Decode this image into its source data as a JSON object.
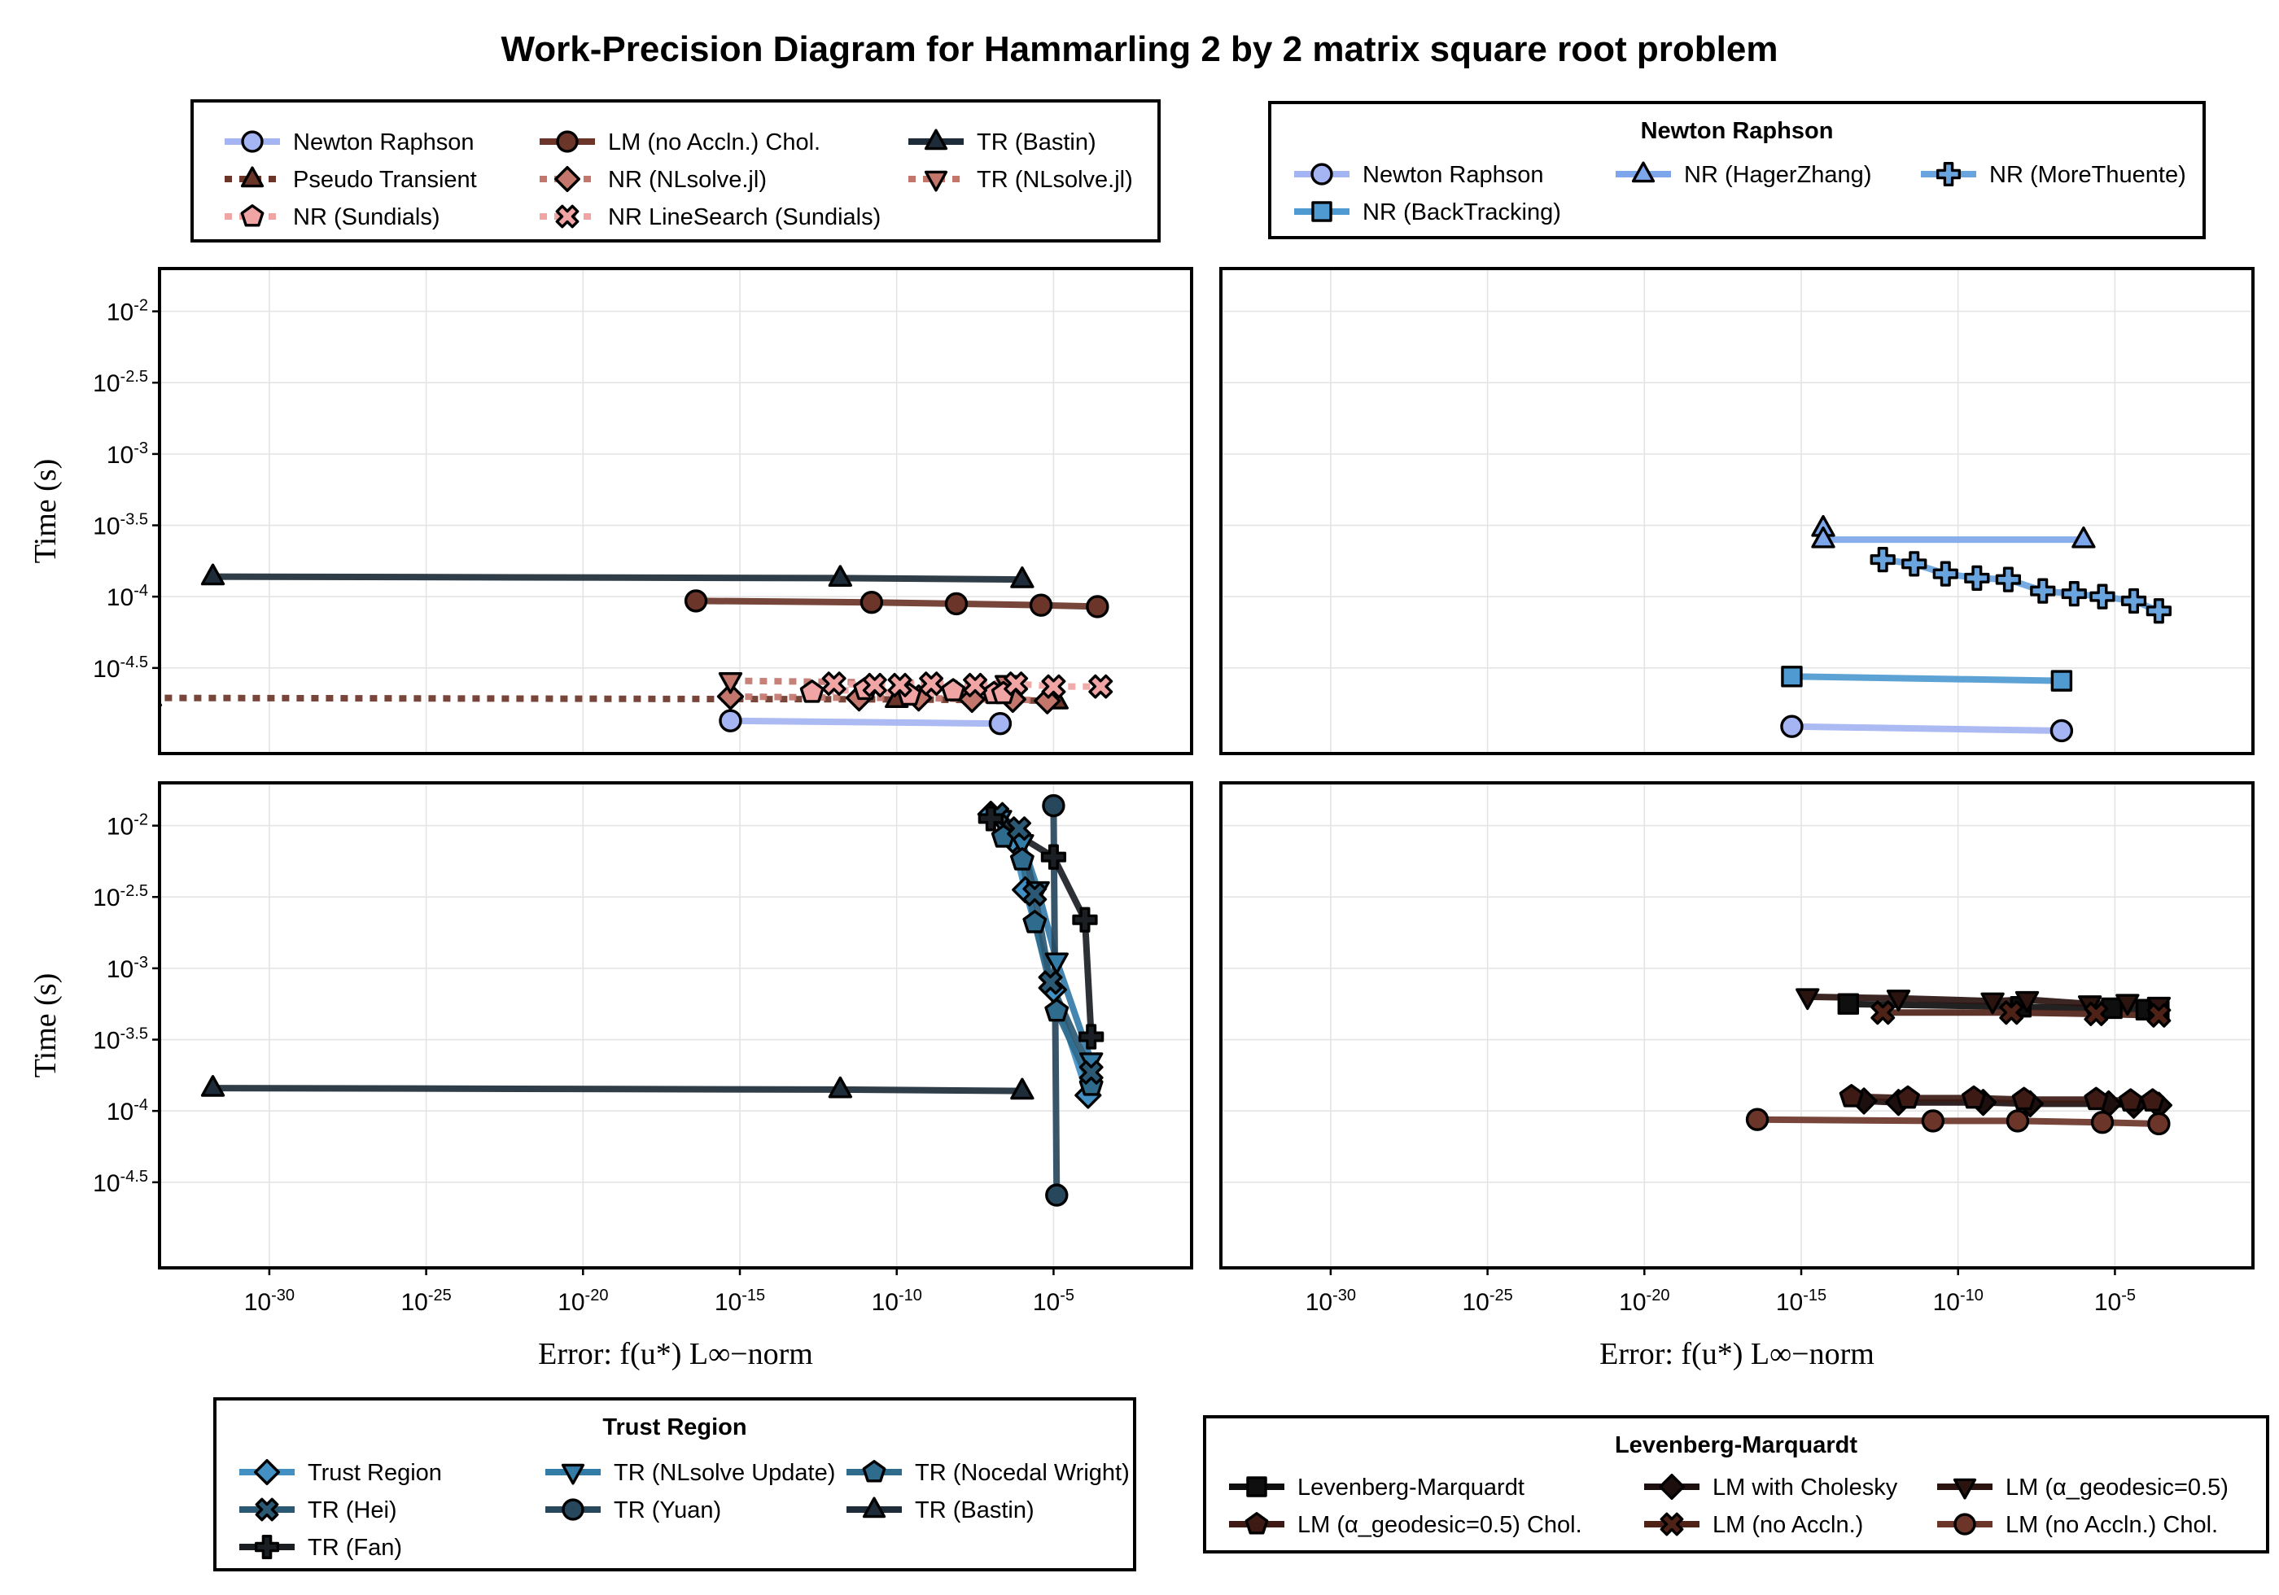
{
  "title": "Work-Precision Diagram for Hammarling 2 by 2 matrix square root problem",
  "axes": {
    "xlabel": "Error: f(u*) L∞−norm",
    "ylabel": "Time (s)",
    "x_scale": "log10",
    "y_scale": "log10",
    "x_ticks": [
      {
        "base": "10",
        "exp": "-30",
        "value": -30
      },
      {
        "base": "10",
        "exp": "-25",
        "value": -25
      },
      {
        "base": "10",
        "exp": "-20",
        "value": -20
      },
      {
        "base": "10",
        "exp": "-15",
        "value": -15
      },
      {
        "base": "10",
        "exp": "-10",
        "value": -10
      },
      {
        "base": "10",
        "exp": "-5",
        "value": -5
      }
    ],
    "y_ticks": [
      {
        "base": "10",
        "exp": "-2",
        "value": -2
      },
      {
        "base": "10",
        "exp": "-2.5",
        "value": -2.5
      },
      {
        "base": "10",
        "exp": "-3",
        "value": -3
      },
      {
        "base": "10",
        "exp": "-3.5",
        "value": -3.5
      },
      {
        "base": "10",
        "exp": "-4",
        "value": -4
      },
      {
        "base": "10",
        "exp": "-4.5",
        "value": -4.5
      }
    ],
    "xlim_log10": [
      -33.5,
      -0.6
    ],
    "ylim_log10": [
      -5.1,
      -1.7
    ],
    "grid": true
  },
  "legends": [
    {
      "id": "general",
      "title": "",
      "columns": 3,
      "entries": [
        {
          "label": "Newton Raphson",
          "color": "#a5b4f2",
          "marker": "circle",
          "dash": "solid"
        },
        {
          "label": "LM (no Accln.) Chol.",
          "color": "#6b3529",
          "marker": "circle",
          "dash": "solid"
        },
        {
          "label": "TR (Bastin)",
          "color": "#1d2c38",
          "marker": "triangle",
          "dash": "solid"
        },
        {
          "label": "Pseudo Transient",
          "color": "#6b3529",
          "marker": "triangle",
          "dash": "dot"
        },
        {
          "label": "NR (NLsolve.jl)",
          "color": "#c2766c",
          "marker": "diamond",
          "dash": "dot"
        },
        {
          "label": "TR (NLsolve.jl)",
          "color": "#c2766c",
          "marker": "triangle-down",
          "dash": "dot"
        },
        {
          "label": "NR (Sundials)",
          "color": "#f0a4a4",
          "marker": "pentagon",
          "dash": "dot"
        },
        {
          "label": "NR LineSearch (Sundials)",
          "color": "#f0a4a4",
          "marker": "x",
          "dash": "dot"
        }
      ]
    },
    {
      "id": "newton",
      "title": "Newton Raphson",
      "columns": 3,
      "entries": [
        {
          "label": "Newton Raphson",
          "color": "#a5b4f2",
          "marker": "circle",
          "dash": "solid"
        },
        {
          "label": "NR (HagerZhang)",
          "color": "#7ea6ea",
          "marker": "triangle",
          "dash": "solid"
        },
        {
          "label": "NR (MoreThuente)",
          "color": "#6aa4de",
          "marker": "cross",
          "dash": "solid"
        },
        {
          "label": "NR (BackTracking)",
          "color": "#4f9ad0",
          "marker": "square",
          "dash": "solid"
        }
      ]
    },
    {
      "id": "trust",
      "title": "Trust Region",
      "columns": 3,
      "entries": [
        {
          "label": "Trust Region",
          "color": "#4290c4",
          "marker": "diamond",
          "dash": "solid"
        },
        {
          "label": "TR (NLsolve Update)",
          "color": "#347ca8",
          "marker": "triangle-down",
          "dash": "solid"
        },
        {
          "label": "TR (Nocedal Wright)",
          "color": "#2e6b8c",
          "marker": "pentagon",
          "dash": "solid"
        },
        {
          "label": "TR (Hei)",
          "color": "#2b5873",
          "marker": "x",
          "dash": "solid"
        },
        {
          "label": "TR (Yuan)",
          "color": "#27475c",
          "marker": "circle",
          "dash": "solid"
        },
        {
          "label": "TR (Bastin)",
          "color": "#1d2c38",
          "marker": "triangle",
          "dash": "solid"
        },
        {
          "label": "TR (Fan)",
          "color": "#1b1f24",
          "marker": "cross",
          "dash": "solid"
        }
      ]
    },
    {
      "id": "lm",
      "title": "Levenberg-Marquardt",
      "columns": 3,
      "entries": [
        {
          "label": "Levenberg-Marquardt",
          "color": "#0f0f10",
          "marker": "square",
          "dash": "solid"
        },
        {
          "label": "LM with Cholesky",
          "color": "#1e0f0f",
          "marker": "diamond",
          "dash": "solid"
        },
        {
          "label": "LM (α_geodesic=0.5)",
          "color": "#2b1410",
          "marker": "triangle-down",
          "dash": "solid"
        },
        {
          "label": "LM (α_geodesic=0.5) Chol.",
          "color": "#3d1a14",
          "marker": "pentagon",
          "dash": "solid"
        },
        {
          "label": "LM (no Accln.)",
          "color": "#4f2218",
          "marker": "x",
          "dash": "solid"
        },
        {
          "label": "LM (no Accln.) Chol.",
          "color": "#6b3529",
          "marker": "circle",
          "dash": "solid"
        }
      ]
    }
  ],
  "chart_data": [
    {
      "type": "line",
      "panel": "top-left",
      "x_log10": true,
      "y_log10": true,
      "series": [
        {
          "name": "Newton Raphson",
          "color": "#a5b4f2",
          "marker": "circle",
          "dash": "solid",
          "x": [
            -15.3,
            -6.7
          ],
          "y": [
            -4.87,
            -4.89
          ]
        },
        {
          "name": "LM (no Accln.) Chol.",
          "color": "#6b3529",
          "marker": "circle",
          "dash": "solid",
          "x": [
            -16.4,
            -10.8,
            -8.1,
            -5.4,
            -3.6
          ],
          "y": [
            -4.03,
            -4.04,
            -4.05,
            -4.06,
            -4.07
          ]
        },
        {
          "name": "TR (Bastin)",
          "color": "#1d2c38",
          "marker": "triangle",
          "dash": "solid",
          "x": [
            -31.8,
            -11.8,
            -6.0
          ],
          "y": [
            -3.86,
            -3.87,
            -3.88
          ]
        },
        {
          "name": "Pseudo Transient",
          "color": "#6b3529",
          "marker": "triangle",
          "dash": "dot",
          "x": [
            -33.8,
            -10.0,
            -4.9
          ],
          "y": [
            -4.71,
            -4.72,
            -4.73
          ]
        },
        {
          "name": "NR (NLsolve.jl)",
          "color": "#c2766c",
          "marker": "diamond",
          "dash": "dot",
          "x": [
            -15.3,
            -11.2,
            -9.3,
            -7.6,
            -6.3,
            -5.2
          ],
          "y": [
            -4.7,
            -4.71,
            -4.71,
            -4.72,
            -4.72,
            -4.73
          ]
        },
        {
          "name": "TR (NLsolve.jl)",
          "color": "#c2766c",
          "marker": "triangle-down",
          "dash": "dot",
          "x": [
            -15.3,
            -6.5
          ],
          "y": [
            -4.59,
            -4.61
          ]
        },
        {
          "name": "NR (Sundials)",
          "color": "#f0a4a4",
          "marker": "pentagon",
          "dash": "dot",
          "x": [
            -12.7,
            -11.0,
            -9.6,
            -8.2,
            -6.9,
            -6.6
          ],
          "y": [
            -4.67,
            -4.65,
            -4.69,
            -4.66,
            -4.68,
            -4.68
          ]
        },
        {
          "name": "NR LineSearch (Sundials)",
          "color": "#f0a4a4",
          "marker": "x",
          "dash": "dot",
          "x": [
            -12.0,
            -10.7,
            -9.9,
            -8.9,
            -7.5,
            -6.2,
            -5.0,
            -3.5
          ],
          "y": [
            -4.61,
            -4.62,
            -4.62,
            -4.61,
            -4.62,
            -4.61,
            -4.63,
            -4.63
          ]
        }
      ]
    },
    {
      "type": "line",
      "panel": "top-right",
      "x_log10": true,
      "y_log10": true,
      "series": [
        {
          "name": "Newton Raphson",
          "color": "#a5b4f2",
          "marker": "circle",
          "dash": "solid",
          "x": [
            -15.3,
            -6.7
          ],
          "y": [
            -4.91,
            -4.94
          ]
        },
        {
          "name": "NR (HagerZhang)",
          "color": "#7ea6ea",
          "marker": "triangle",
          "dash": "solid",
          "x": [
            -14.3,
            -14.3,
            -6.0
          ],
          "y": [
            -3.52,
            -3.6,
            -3.6
          ]
        },
        {
          "name": "NR (MoreThuente)",
          "color": "#6aa4de",
          "marker": "cross",
          "dash": "solid",
          "x": [
            -12.4,
            -11.4,
            -10.4,
            -9.4,
            -8.4,
            -7.3,
            -6.3,
            -5.4,
            -4.4,
            -3.6
          ],
          "y": [
            -3.74,
            -3.77,
            -3.84,
            -3.87,
            -3.88,
            -3.96,
            -3.98,
            -4.0,
            -4.03,
            -4.1
          ]
        },
        {
          "name": "NR (BackTracking)",
          "color": "#4f9ad0",
          "marker": "square",
          "dash": "solid",
          "x": [
            -15.3,
            -6.7
          ],
          "y": [
            -4.56,
            -4.59
          ]
        }
      ]
    },
    {
      "type": "line",
      "panel": "bottom-left",
      "x_log10": true,
      "y_log10": true,
      "series": [
        {
          "name": "Trust Region",
          "color": "#4290c4",
          "marker": "diamond",
          "dash": "solid",
          "x": [
            -7.0,
            -6.3,
            -5.9,
            -5.0,
            -3.9
          ],
          "y": [
            -1.92,
            -2.1,
            -2.45,
            -3.15,
            -3.89
          ]
        },
        {
          "name": "TR (NLsolve Update)",
          "color": "#347ca8",
          "marker": "triangle-down",
          "dash": "solid",
          "x": [
            -6.7,
            -6.0,
            -5.5,
            -4.9,
            -3.8
          ],
          "y": [
            -1.95,
            -2.12,
            -2.45,
            -2.95,
            -3.65
          ]
        },
        {
          "name": "TR (Nocedal Wright)",
          "color": "#2e6b8c",
          "marker": "pentagon",
          "dash": "solid",
          "x": [
            -6.6,
            -6.0,
            -5.6,
            -4.9,
            -3.8
          ],
          "y": [
            -2.08,
            -2.24,
            -2.68,
            -3.3,
            -3.82
          ]
        },
        {
          "name": "TR (Hei)",
          "color": "#2b5873",
          "marker": "x",
          "dash": "solid",
          "x": [
            -6.8,
            -6.1,
            -5.6,
            -5.1,
            -3.8
          ],
          "y": [
            -1.92,
            -2.02,
            -2.48,
            -3.1,
            -3.73
          ]
        },
        {
          "name": "TR (Yuan)",
          "color": "#27475c",
          "marker": "circle",
          "dash": "solid",
          "x": [
            -5.0,
            -4.9
          ],
          "y": [
            -1.86,
            -4.59
          ]
        },
        {
          "name": "TR (Bastin)",
          "color": "#1d2c38",
          "marker": "triangle",
          "dash": "solid",
          "x": [
            -31.8,
            -11.8,
            -6.0
          ],
          "y": [
            -3.84,
            -3.85,
            -3.86
          ]
        },
        {
          "name": "TR (Fan)",
          "color": "#1b1f24",
          "marker": "cross",
          "dash": "solid",
          "x": [
            -7.0,
            -5.0,
            -4.0,
            -3.8
          ],
          "y": [
            -1.95,
            -2.22,
            -2.66,
            -3.48
          ]
        }
      ]
    },
    {
      "type": "line",
      "panel": "bottom-right",
      "x_log10": true,
      "y_log10": true,
      "series": [
        {
          "name": "Levenberg-Marquardt",
          "color": "#0f0f10",
          "marker": "square",
          "dash": "solid",
          "x": [
            -13.5,
            -8.0,
            -5.1,
            -4.0,
            -3.6
          ],
          "y": [
            -3.25,
            -3.27,
            -3.28,
            -3.29,
            -3.3
          ]
        },
        {
          "name": "LM with Cholesky",
          "color": "#1e0f0f",
          "marker": "diamond",
          "dash": "solid",
          "x": [
            -13.0,
            -11.9,
            -9.2,
            -7.7,
            -5.2,
            -4.4,
            -3.6
          ],
          "y": [
            -3.93,
            -3.94,
            -3.94,
            -3.95,
            -3.95,
            -3.96,
            -3.96
          ]
        },
        {
          "name": "LM (α_geodesic=0.5)",
          "color": "#2b1410",
          "marker": "triangle-down",
          "dash": "solid",
          "x": [
            -14.8,
            -11.9,
            -8.9,
            -7.8,
            -5.8,
            -4.6,
            -3.6
          ],
          "y": [
            -3.2,
            -3.21,
            -3.23,
            -3.22,
            -3.25,
            -3.24,
            -3.26
          ]
        },
        {
          "name": "LM (α_geodesic=0.5) Chol.",
          "color": "#3d1a14",
          "marker": "pentagon",
          "dash": "solid",
          "x": [
            -13.4,
            -11.6,
            -9.5,
            -7.9,
            -5.6,
            -4.5,
            -3.8
          ],
          "y": [
            -3.9,
            -3.91,
            -3.91,
            -3.92,
            -3.92,
            -3.93,
            -3.93
          ]
        },
        {
          "name": "LM (no Accln.)",
          "color": "#4f2218",
          "marker": "x",
          "dash": "solid",
          "x": [
            -12.4,
            -8.3,
            -5.6,
            -3.6
          ],
          "y": [
            -3.31,
            -3.31,
            -3.32,
            -3.33
          ]
        },
        {
          "name": "LM (no Accln.) Chol.",
          "color": "#6b3529",
          "marker": "circle",
          "dash": "solid",
          "x": [
            -16.4,
            -10.8,
            -8.1,
            -5.4,
            -3.6
          ],
          "y": [
            -4.06,
            -4.07,
            -4.07,
            -4.08,
            -4.09
          ]
        }
      ]
    }
  ]
}
